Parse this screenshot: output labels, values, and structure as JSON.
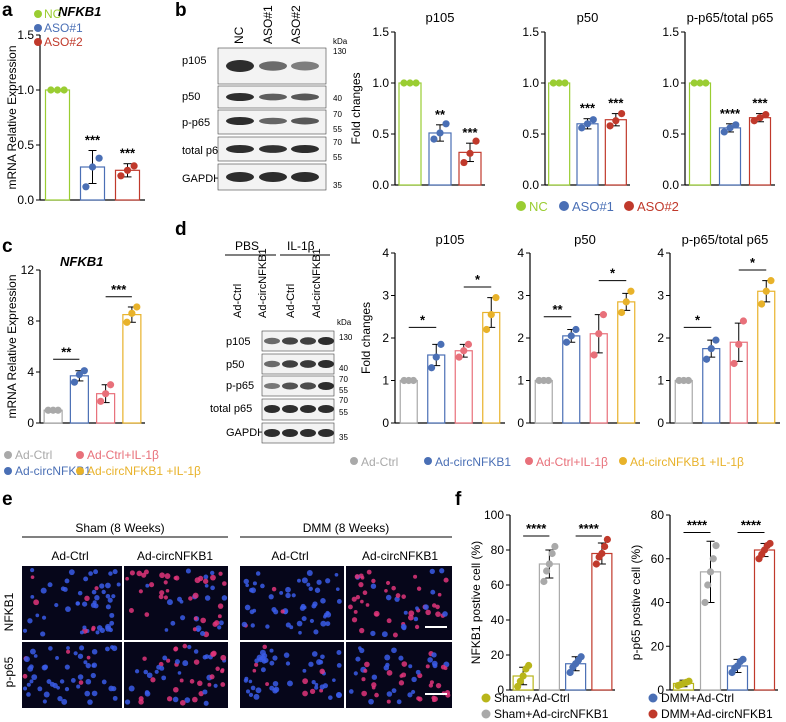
{
  "colors": {
    "nc": "#9acd32",
    "aso1": "#4a6fb5",
    "aso2": "#c0392b",
    "ctrl": "#a9a9a9",
    "circ": "#4a6fb5",
    "il1b": "#e8707a",
    "circil": "#e8b22a",
    "sham_ctrl": "#b8b51a",
    "sham_circ": "#a9a9a9",
    "dmm_ctrl": "#4a6fb5",
    "dmm_circ": "#c0392b",
    "blot": "#222222"
  },
  "panel_labels": {
    "a": "a",
    "b": "b",
    "c": "c",
    "d": "d",
    "e": "e",
    "f": "f"
  },
  "panel_b": {
    "lanes": [
      "NC",
      "ASO#1",
      "ASO#2"
    ],
    "bands": [
      "p105",
      "p50",
      "p-p65",
      "total p65",
      "GAPDH"
    ],
    "kda_label": "kDa",
    "markers": [
      "130",
      "40",
      "70",
      "55",
      "70",
      "55",
      "35"
    ],
    "legend": [
      "NC",
      "ASO#1",
      "ASO#2"
    ]
  },
  "panel_d": {
    "groups": [
      "PBS",
      "IL-1β"
    ],
    "lanes": [
      "Ad-Ctrl",
      "Ad-circNFKB1",
      "Ad-Ctrl",
      "Ad-circNFKB1"
    ],
    "bands": [
      "p105",
      "p50",
      "p-p65",
      "total p65",
      "GAPDH"
    ],
    "kda_label": "kDa",
    "markers": [
      "130",
      "40",
      "70",
      "55",
      "70",
      "55",
      "35"
    ],
    "legend": [
      "Ad-Ctrl",
      "Ad-circNFKB1",
      "Ad-Ctrl+IL-1β",
      "Ad-circNFKB1 +IL-1β"
    ]
  },
  "panel_c": {
    "legend": [
      "Ad-Ctrl",
      "Ad-Ctrl+IL-1β",
      "Ad-circNFKB1",
      "Ad-circNFKB1 +IL-1β"
    ]
  },
  "panel_e": {
    "group_headers": [
      "Sham (8 Weeks)",
      "DMM (8 Weeks)"
    ],
    "column_headers": [
      "Ad-Ctrl",
      "Ad-circNFKB1",
      "Ad-Ctrl",
      "Ad-circNFKB1"
    ],
    "row_labels": [
      "NFKB1",
      "p-p65"
    ]
  },
  "panel_f": {
    "legend": [
      "Sham+Ad-Ctrl",
      "DMM+Ad-Ctrl",
      "Sham+Ad-circNFKB1",
      "DMM+Ad-circNFKB1"
    ]
  },
  "chart_data": [
    {
      "id": "a",
      "type": "bar",
      "title": "NFKB1",
      "xlabel": "",
      "ylabel": "mRNA Relative Expression",
      "categories": [
        "NC",
        "ASO#1",
        "ASO#2"
      ],
      "values": [
        1.0,
        0.3,
        0.27
      ],
      "errors": [
        0,
        0.15,
        0.06
      ],
      "points": [
        [
          1.0,
          1.0,
          1.0
        ],
        [
          0.12,
          0.3,
          0.38
        ],
        [
          0.22,
          0.27,
          0.31
        ]
      ],
      "ylim": [
        0,
        1.5
      ],
      "yticks": [
        "0.0",
        "0.5",
        "1.0",
        "1.5"
      ],
      "significance": [
        "",
        "***",
        "***"
      ],
      "legend": [
        "NC",
        "ASO#1",
        "ASO#2"
      ]
    },
    {
      "id": "b1",
      "type": "bar",
      "title": "p105",
      "ylabel": "Fold changes",
      "categories": [
        "NC",
        "ASO#1",
        "ASO#2"
      ],
      "values": [
        1.0,
        0.51,
        0.32
      ],
      "errors": [
        0,
        0.08,
        0.09
      ],
      "points": [
        [
          1.0,
          1.0,
          1.0
        ],
        [
          0.45,
          0.51,
          0.6
        ],
        [
          0.22,
          0.31,
          0.43
        ]
      ],
      "ylim": [
        0,
        1.5
      ],
      "yticks": [
        "0.0",
        "0.5",
        "1.0",
        "1.5"
      ],
      "significance": [
        "",
        "**",
        "***"
      ]
    },
    {
      "id": "b2",
      "type": "bar",
      "title": "p50",
      "categories": [
        "NC",
        "ASO#1",
        "ASO#2"
      ],
      "values": [
        1.0,
        0.6,
        0.64
      ],
      "errors": [
        0,
        0.05,
        0.06
      ],
      "points": [
        [
          1.0,
          1.0,
          1.0
        ],
        [
          0.56,
          0.6,
          0.64
        ],
        [
          0.58,
          0.63,
          0.7
        ]
      ],
      "ylim": [
        0,
        1.5
      ],
      "yticks": [
        "0.0",
        "0.5",
        "1.0",
        "1.5"
      ],
      "significance": [
        "",
        "***",
        "***"
      ]
    },
    {
      "id": "b3",
      "type": "bar",
      "title": "p-p65/total p65",
      "categories": [
        "NC",
        "ASO#1",
        "ASO#2"
      ],
      "values": [
        1.0,
        0.56,
        0.66
      ],
      "errors": [
        0,
        0.04,
        0.04
      ],
      "points": [
        [
          1.0,
          1.0,
          1.0
        ],
        [
          0.52,
          0.56,
          0.59
        ],
        [
          0.63,
          0.66,
          0.69
        ]
      ],
      "ylim": [
        0,
        1.5
      ],
      "yticks": [
        "0.0",
        "0.5",
        "1.0",
        "1.5"
      ],
      "significance": [
        "",
        "****",
        "***"
      ]
    },
    {
      "id": "c",
      "type": "bar",
      "title": "NFKB1",
      "ylabel": "mRNA Relative Expression",
      "categories": [
        "Ad-Ctrl",
        "Ad-circNFKB1",
        "Ad-Ctrl+IL-1β",
        "Ad-circNFKB1 +IL-1β"
      ],
      "values": [
        1.0,
        3.7,
        2.3,
        8.5
      ],
      "errors": [
        0,
        0.4,
        0.7,
        0.6
      ],
      "points": [
        [
          1.0,
          1.0,
          1.0
        ],
        [
          3.2,
          3.8,
          4.1
        ],
        [
          1.7,
          2.3,
          3.0
        ],
        [
          7.9,
          8.6,
          9.1
        ]
      ],
      "ylim": [
        0,
        12
      ],
      "yticks": [
        "0",
        "4",
        "8",
        "12"
      ],
      "brackets": [
        {
          "from": 0,
          "to": 1,
          "label": "**",
          "y": 5.0
        },
        {
          "from": 2,
          "to": 3,
          "label": "***",
          "y": 9.9
        }
      ]
    },
    {
      "id": "d1",
      "type": "bar",
      "title": "p105",
      "ylabel": "Fold changes",
      "categories": [
        "Ad-Ctrl",
        "Ad-circNFKB1",
        "Ad-Ctrl+IL-1β",
        "Ad-circNFKB1 +IL-1β"
      ],
      "values": [
        1.0,
        1.6,
        1.7,
        2.6
      ],
      "errors": [
        0,
        0.25,
        0.15,
        0.35
      ],
      "points": [
        [
          1.0,
          1.0,
          1.0
        ],
        [
          1.3,
          1.55,
          1.85
        ],
        [
          1.55,
          1.7,
          1.85
        ],
        [
          2.2,
          2.55,
          2.95
        ]
      ],
      "ylim": [
        0,
        4
      ],
      "yticks": [
        "0",
        "1",
        "2",
        "3",
        "4"
      ],
      "brackets": [
        {
          "from": 0,
          "to": 1,
          "label": "*",
          "y": 2.25
        },
        {
          "from": 2,
          "to": 3,
          "label": "*",
          "y": 3.2
        }
      ]
    },
    {
      "id": "d2",
      "type": "bar",
      "title": "p50",
      "categories": [
        "Ad-Ctrl",
        "Ad-circNFKB1",
        "Ad-Ctrl+IL-1β",
        "Ad-circNFKB1 +IL-1β"
      ],
      "values": [
        1.0,
        2.05,
        2.1,
        2.85
      ],
      "errors": [
        0,
        0.15,
        0.45,
        0.2
      ],
      "points": [
        [
          1.0,
          1.0,
          1.0
        ],
        [
          1.9,
          2.05,
          2.2
        ],
        [
          1.6,
          2.1,
          2.55
        ],
        [
          2.6,
          2.85,
          3.1
        ]
      ],
      "ylim": [
        0,
        4
      ],
      "yticks": [
        "0",
        "1",
        "2",
        "3",
        "4"
      ],
      "brackets": [
        {
          "from": 0,
          "to": 1,
          "label": "**",
          "y": 2.5
        },
        {
          "from": 2,
          "to": 3,
          "label": "*",
          "y": 3.35
        }
      ]
    },
    {
      "id": "d3",
      "type": "bar",
      "title": "p-p65/total p65",
      "categories": [
        "Ad-Ctrl",
        "Ad-circNFKB1",
        "Ad-Ctrl+IL-1β",
        "Ad-circNFKB1 +IL-1β"
      ],
      "values": [
        1.0,
        1.75,
        1.9,
        3.1
      ],
      "errors": [
        0,
        0.2,
        0.45,
        0.25
      ],
      "points": [
        [
          1.0,
          1.0,
          1.0
        ],
        [
          1.5,
          1.75,
          1.95
        ],
        [
          1.4,
          1.85,
          2.4
        ],
        [
          2.8,
          3.1,
          3.35
        ]
      ],
      "ylim": [
        0,
        4
      ],
      "yticks": [
        "0",
        "1",
        "2",
        "3",
        "4"
      ],
      "brackets": [
        {
          "from": 0,
          "to": 1,
          "label": "*",
          "y": 2.25
        },
        {
          "from": 2,
          "to": 3,
          "label": "*",
          "y": 3.6
        }
      ]
    },
    {
      "id": "f1",
      "type": "bar",
      "ylabel": "NFKB1 postive cell (%)",
      "categories": [
        "Sham+Ad-Ctrl",
        "Sham+Ad-circNFKB1",
        "DMM+Ad-Ctrl",
        "DMM+Ad-circNFKB1"
      ],
      "values": [
        8,
        72,
        15,
        78
      ],
      "errors": [
        5,
        8,
        4,
        6
      ],
      "points": [
        [
          2,
          5,
          8,
          12,
          14
        ],
        [
          62,
          68,
          72,
          78,
          82
        ],
        [
          10,
          13,
          15,
          17,
          19
        ],
        [
          72,
          76,
          78,
          82,
          86
        ]
      ],
      "ylim": [
        0,
        100
      ],
      "yticks": [
        "0",
        "20",
        "40",
        "60",
        "80",
        "100"
      ],
      "brackets": [
        {
          "from": 0,
          "to": 1,
          "label": "****",
          "y": 88
        },
        {
          "from": 2,
          "to": 3,
          "label": "****",
          "y": 88
        }
      ]
    },
    {
      "id": "f2",
      "type": "bar",
      "ylabel": "p-p65 postive cell (%)",
      "categories": [
        "Sham+Ad-Ctrl",
        "Sham+Ad-circNFKB1",
        "DMM+Ad-Ctrl",
        "DMM+Ad-circNFKB1"
      ],
      "values": [
        3,
        54,
        11,
        64
      ],
      "errors": [
        1.5,
        14,
        3,
        3
      ],
      "points": [
        [
          2,
          2.5,
          3,
          3.5,
          4
        ],
        [
          40,
          48,
          54,
          60,
          66
        ],
        [
          8,
          10,
          11,
          13,
          14
        ],
        [
          60,
          62,
          64,
          66,
          67
        ]
      ],
      "ylim": [
        0,
        80
      ],
      "yticks": [
        "0",
        "20",
        "40",
        "60",
        "80"
      ],
      "brackets": [
        {
          "from": 0,
          "to": 1,
          "label": "****",
          "y": 72
        },
        {
          "from": 2,
          "to": 3,
          "label": "****",
          "y": 72
        }
      ]
    }
  ]
}
